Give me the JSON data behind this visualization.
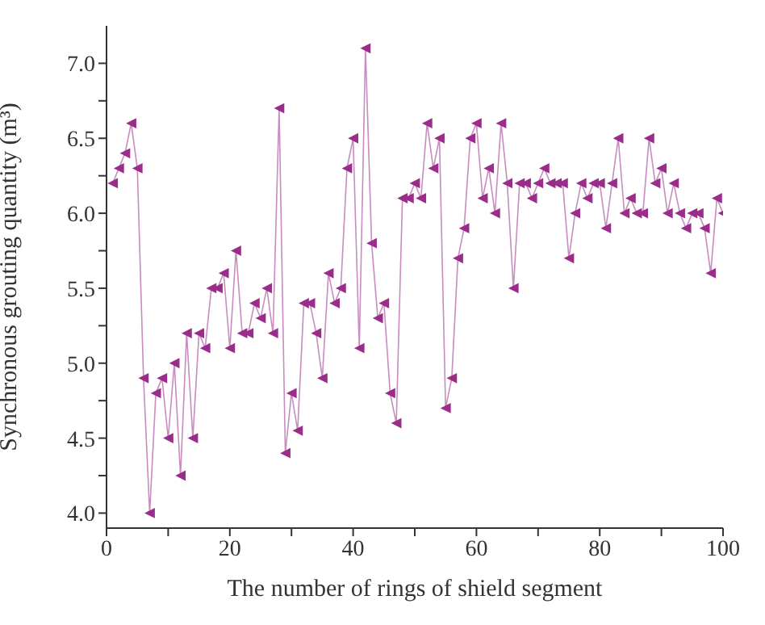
{
  "chart_data": {
    "type": "line",
    "xlabel": "The number of rings of shield segment",
    "ylabel": "Synchronous grouting quantity (m³)",
    "x": [
      1,
      2,
      3,
      4,
      5,
      6,
      7,
      8,
      9,
      10,
      11,
      12,
      13,
      14,
      15,
      16,
      17,
      18,
      19,
      20,
      21,
      22,
      23,
      24,
      25,
      26,
      27,
      28,
      29,
      30,
      31,
      32,
      33,
      34,
      35,
      36,
      37,
      38,
      39,
      40,
      41,
      42,
      43,
      44,
      45,
      46,
      47,
      48,
      49,
      50,
      51,
      52,
      53,
      54,
      55,
      56,
      57,
      58,
      59,
      60,
      61,
      62,
      63,
      64,
      65,
      66,
      67,
      68,
      69,
      70,
      71,
      72,
      73,
      74,
      75,
      76,
      77,
      78,
      79,
      80,
      81,
      82,
      83,
      84,
      85,
      86,
      87,
      88,
      89,
      90,
      91,
      92,
      93,
      94,
      95,
      96,
      97,
      98,
      99,
      100
    ],
    "series": [
      {
        "color": "#9b2d8a",
        "values": [
          6.2,
          6.3,
          6.4,
          6.6,
          6.3,
          4.9,
          4.0,
          4.8,
          4.9,
          4.5,
          5.0,
          4.25,
          5.2,
          4.5,
          5.2,
          5.1,
          5.5,
          5.5,
          5.6,
          5.1,
          5.75,
          5.2,
          5.2,
          5.4,
          5.3,
          5.5,
          5.2,
          6.7,
          4.4,
          4.8,
          4.55,
          5.4,
          5.4,
          5.2,
          4.9,
          5.6,
          5.4,
          5.5,
          6.3,
          6.5,
          5.1,
          7.1,
          5.8,
          5.3,
          5.4,
          4.8,
          4.6,
          6.1,
          6.1,
          6.2,
          6.1,
          6.6,
          6.3,
          6.5,
          4.7,
          4.9,
          5.7,
          5.9,
          6.5,
          6.6,
          6.1,
          6.3,
          6.0,
          6.6,
          6.2,
          5.5,
          6.2,
          6.2,
          6.1,
          6.2,
          6.3,
          6.2,
          6.2,
          6.2,
          5.7,
          6.0,
          6.2,
          6.1,
          6.2,
          6.2,
          5.9,
          6.2,
          6.5,
          6.0,
          6.1,
          6.0,
          6.0,
          6.5,
          6.2,
          6.3,
          6.0,
          6.2,
          6.0,
          5.9,
          6.0,
          6.0,
          5.9,
          5.6,
          6.1,
          6.0
        ]
      }
    ],
    "xlim": [
      0,
      100
    ],
    "xticks": [
      0,
      {
        "value": 10,
        "label": null
      },
      20,
      {
        "value": 30,
        "label": null
      },
      40,
      {
        "value": 50,
        "label": null
      },
      60,
      {
        "value": 70,
        "label": null
      },
      80,
      {
        "value": 90,
        "label": null
      },
      100
    ],
    "ylim": [
      3.9,
      7.25
    ],
    "yticks": [
      {
        "value": 4,
        "label": "4.0"
      },
      {
        "value": 4.25,
        "label": null
      },
      {
        "value": 4.5,
        "label": "4.5"
      },
      {
        "value": 4.75,
        "label": null
      },
      {
        "value": 5,
        "label": "5.0"
      },
      {
        "value": 5.25,
        "label": null
      },
      {
        "value": 5.5,
        "label": "5.5"
      },
      {
        "value": 5.75,
        "label": null
      },
      {
        "value": 6,
        "label": "6.0"
      },
      {
        "value": 6.25,
        "label": null
      },
      {
        "value": 6.5,
        "label": "6.5"
      },
      {
        "value": 6.75,
        "label": null
      },
      {
        "value": 7,
        "label": "7.0"
      }
    ],
    "marker": "triangle",
    "line_style": "solid",
    "grid": false,
    "legend": false
  }
}
